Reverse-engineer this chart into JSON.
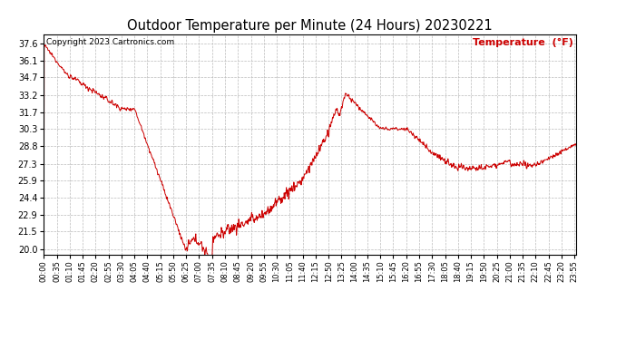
{
  "title": "Outdoor Temperature per Minute (24 Hours) 20230221",
  "copyright_text": "Copyright 2023 Cartronics.com",
  "legend_text": "Temperature  (°F)",
  "line_color": "#cc0000",
  "copyright_color": "#000000",
  "legend_color": "#cc0000",
  "title_color": "#000000",
  "background_color": "#ffffff",
  "grid_color": "#bbbbbb",
  "yticks": [
    20.0,
    21.5,
    22.9,
    24.4,
    25.9,
    27.3,
    28.8,
    30.3,
    31.7,
    33.2,
    34.7,
    36.1,
    37.6
  ],
  "ylim": [
    19.5,
    38.4
  ],
  "total_minutes": 1440,
  "x_tick_positions": [
    0,
    35,
    70,
    105,
    140,
    175,
    210,
    245,
    280,
    315,
    350,
    385,
    420,
    455,
    490,
    525,
    560,
    595,
    630,
    665,
    700,
    735,
    770,
    805,
    840,
    875,
    910,
    945,
    980,
    1015,
    1050,
    1085,
    1120,
    1155,
    1190,
    1225,
    1260,
    1295,
    1330,
    1365,
    1400,
    1435
  ],
  "x_tick_labels": [
    "00:00",
    "00:35",
    "01:10",
    "01:45",
    "02:20",
    "02:55",
    "03:30",
    "04:05",
    "04:40",
    "05:15",
    "05:50",
    "06:25",
    "07:00",
    "07:35",
    "08:10",
    "08:45",
    "09:20",
    "09:55",
    "10:30",
    "11:05",
    "11:40",
    "12:15",
    "12:50",
    "13:25",
    "14:00",
    "14:35",
    "15:10",
    "15:45",
    "16:20",
    "16:55",
    "17:30",
    "18:05",
    "18:40",
    "19:15",
    "19:50",
    "20:25",
    "21:00",
    "21:35",
    "22:10",
    "22:45",
    "23:20",
    "23:55"
  ]
}
